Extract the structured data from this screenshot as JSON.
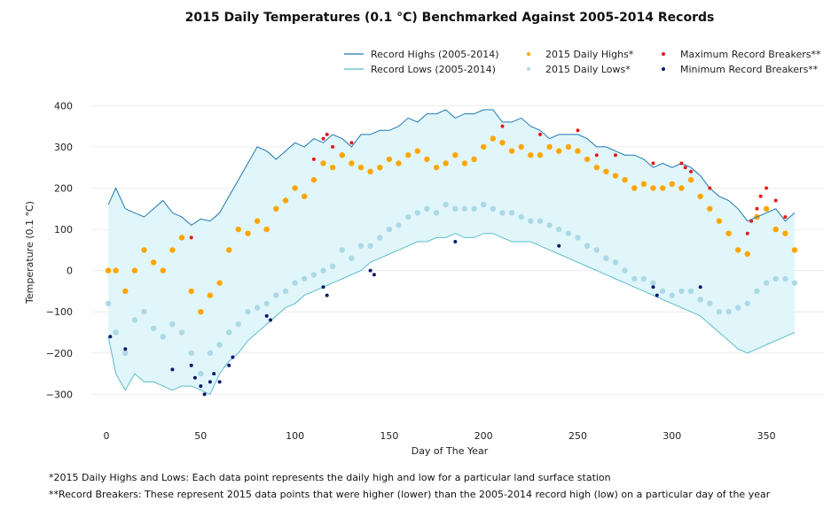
{
  "chart_data": {
    "type": "scatter",
    "title": "2015 Daily Temperatures (0.1 °C) Benchmarked Against 2005-2014 Records",
    "xlabel": "Day of The Year",
    "ylabel": "Temperature (0.1 °C)",
    "xlim": [
      -8,
      381
    ],
    "ylim": [
      -370,
      420
    ],
    "x_ticks": [
      0,
      50,
      100,
      150,
      200,
      250,
      300,
      350
    ],
    "y_ticks": [
      400,
      300,
      200,
      100,
      0,
      -100,
      -200,
      -300
    ],
    "x_tick_labels": [
      "0",
      "50",
      "100",
      "150",
      "200",
      "250",
      "300",
      "350"
    ],
    "y_tick_labels": [
      "400",
      "300",
      "200",
      "100",
      "0",
      "−100",
      "−200",
      "−300"
    ],
    "grid": "horizontal",
    "legend_position": "top-right",
    "colors": {
      "record_high": "#1f77b4",
      "record_low": "#5bbcc9",
      "fill": "#e0f6fa",
      "daily_high": "#ffa500",
      "daily_low": "#add8e6",
      "max_breaker": "#e41a1c",
      "min_breaker": "#0b1a6e"
    },
    "legend": [
      {
        "label": "Record Highs (2005-2014)",
        "kind": "line",
        "color": "#1f77b4"
      },
      {
        "label": "Record Lows (2005-2014)",
        "kind": "line",
        "color": "#5bbcc9"
      },
      {
        "label": "2015 Daily Highs*",
        "kind": "dot",
        "color": "#ffa500"
      },
      {
        "label": "2015 Daily Lows*",
        "kind": "dot",
        "color": "#add8e6"
      },
      {
        "label": "Maximum Record Breakers**",
        "kind": "dot",
        "color": "#e41a1c"
      },
      {
        "label": "Minimum Record Breakers**",
        "kind": "dot",
        "color": "#0b1a6e"
      }
    ],
    "series": [
      {
        "name": "Record Highs (2005-2014)",
        "type": "line",
        "x": [
          1,
          5,
          10,
          15,
          20,
          25,
          30,
          35,
          40,
          45,
          50,
          55,
          60,
          65,
          70,
          75,
          80,
          85,
          90,
          95,
          100,
          105,
          110,
          115,
          120,
          125,
          130,
          135,
          140,
          145,
          150,
          155,
          160,
          165,
          170,
          175,
          180,
          185,
          190,
          195,
          200,
          205,
          210,
          215,
          220,
          225,
          230,
          235,
          240,
          245,
          250,
          255,
          260,
          265,
          270,
          275,
          280,
          285,
          290,
          295,
          300,
          305,
          310,
          315,
          320,
          325,
          330,
          335,
          340,
          345,
          350,
          355,
          360,
          365
        ],
        "y": [
          160,
          200,
          150,
          140,
          130,
          150,
          170,
          140,
          130,
          110,
          125,
          120,
          140,
          180,
          220,
          260,
          300,
          290,
          270,
          290,
          310,
          300,
          320,
          310,
          330,
          320,
          300,
          330,
          330,
          340,
          340,
          350,
          370,
          360,
          380,
          380,
          390,
          370,
          380,
          380,
          390,
          390,
          360,
          360,
          370,
          350,
          340,
          320,
          330,
          330,
          330,
          320,
          300,
          300,
          290,
          280,
          280,
          270,
          250,
          260,
          250,
          260,
          250,
          230,
          200,
          180,
          170,
          150,
          120,
          130,
          140,
          150,
          120,
          140
        ]
      },
      {
        "name": "Record Lows (2005-2014)",
        "type": "line",
        "x": [
          1,
          5,
          10,
          15,
          20,
          25,
          30,
          35,
          40,
          45,
          50,
          55,
          60,
          65,
          70,
          75,
          80,
          85,
          90,
          95,
          100,
          105,
          110,
          115,
          120,
          125,
          130,
          135,
          140,
          145,
          150,
          155,
          160,
          165,
          170,
          175,
          180,
          185,
          190,
          195,
          200,
          205,
          210,
          215,
          220,
          225,
          230,
          235,
          240,
          245,
          250,
          255,
          260,
          265,
          270,
          275,
          280,
          285,
          290,
          295,
          300,
          305,
          310,
          315,
          320,
          325,
          330,
          335,
          340,
          345,
          350,
          355,
          360,
          365
        ],
        "y": [
          -160,
          -250,
          -290,
          -250,
          -270,
          -270,
          -280,
          -290,
          -280,
          -280,
          -290,
          -300,
          -250,
          -220,
          -200,
          -170,
          -150,
          -130,
          -110,
          -90,
          -80,
          -60,
          -50,
          -40,
          -30,
          -20,
          -10,
          0,
          20,
          30,
          40,
          50,
          60,
          70,
          70,
          80,
          80,
          90,
          80,
          80,
          90,
          90,
          80,
          70,
          70,
          70,
          60,
          50,
          40,
          30,
          20,
          10,
          0,
          -10,
          -20,
          -30,
          -40,
          -50,
          -60,
          -70,
          -80,
          -90,
          -100,
          -110,
          -130,
          -150,
          -170,
          -190,
          -200,
          -190,
          -180,
          -170,
          -160,
          -150
        ]
      },
      {
        "name": "2015 Daily Highs*",
        "type": "scatter",
        "x": [
          1,
          5,
          10,
          15,
          20,
          25,
          30,
          35,
          40,
          45,
          50,
          55,
          60,
          65,
          70,
          75,
          80,
          85,
          90,
          95,
          100,
          105,
          110,
          115,
          120,
          125,
          130,
          135,
          140,
          145,
          150,
          155,
          160,
          165,
          170,
          175,
          180,
          185,
          190,
          195,
          200,
          205,
          210,
          215,
          220,
          225,
          230,
          235,
          240,
          245,
          250,
          255,
          260,
          265,
          270,
          275,
          280,
          285,
          290,
          295,
          300,
          305,
          310,
          315,
          320,
          325,
          330,
          335,
          340,
          345,
          350,
          355,
          360,
          365
        ],
        "y": [
          0,
          0,
          -50,
          0,
          50,
          20,
          0,
          50,
          80,
          -50,
          -100,
          -60,
          -30,
          50,
          100,
          90,
          120,
          100,
          150,
          170,
          200,
          180,
          220,
          260,
          250,
          280,
          260,
          250,
          240,
          250,
          270,
          260,
          280,
          290,
          270,
          250,
          260,
          280,
          260,
          270,
          300,
          320,
          310,
          290,
          300,
          280,
          280,
          300,
          290,
          300,
          290,
          270,
          250,
          240,
          230,
          220,
          200,
          210,
          200,
          200,
          210,
          200,
          220,
          180,
          150,
          120,
          90,
          50,
          40,
          130,
          150,
          100,
          90,
          50
        ]
      },
      {
        "name": "2015 Daily Lows*",
        "type": "scatter",
        "x": [
          1,
          5,
          10,
          15,
          20,
          25,
          30,
          35,
          40,
          45,
          50,
          55,
          60,
          65,
          70,
          75,
          80,
          85,
          90,
          95,
          100,
          105,
          110,
          115,
          120,
          125,
          130,
          135,
          140,
          145,
          150,
          155,
          160,
          165,
          170,
          175,
          180,
          185,
          190,
          195,
          200,
          205,
          210,
          215,
          220,
          225,
          230,
          235,
          240,
          245,
          250,
          255,
          260,
          265,
          270,
          275,
          280,
          285,
          290,
          295,
          300,
          305,
          310,
          315,
          320,
          325,
          330,
          335,
          340,
          345,
          350,
          355,
          360,
          365
        ],
        "y": [
          -80,
          -150,
          -200,
          -120,
          -100,
          -140,
          -160,
          -130,
          -150,
          -200,
          -250,
          -200,
          -180,
          -150,
          -130,
          -100,
          -90,
          -80,
          -60,
          -50,
          -30,
          -20,
          -10,
          0,
          10,
          50,
          30,
          60,
          60,
          80,
          100,
          110,
          130,
          140,
          150,
          140,
          160,
          150,
          150,
          150,
          160,
          150,
          140,
          140,
          130,
          120,
          120,
          110,
          100,
          90,
          80,
          60,
          50,
          30,
          20,
          0,
          -20,
          -20,
          -30,
          -50,
          -60,
          -50,
          -50,
          -70,
          -80,
          -100,
          -100,
          -90,
          -80,
          -50,
          -30,
          -20,
          -20,
          -30
        ]
      },
      {
        "name": "Maximum Record Breakers**",
        "type": "scatter",
        "x": [
          45,
          110,
          115,
          117,
          120,
          130,
          210,
          230,
          250,
          260,
          270,
          290,
          305,
          307,
          310,
          320,
          340,
          342,
          345,
          347,
          350,
          355,
          360
        ],
        "y": [
          80,
          270,
          320,
          330,
          300,
          310,
          350,
          330,
          340,
          280,
          280,
          260,
          260,
          250,
          240,
          200,
          90,
          120,
          150,
          180,
          200,
          170,
          130
        ]
      },
      {
        "name": "Minimum Record Breakers**",
        "type": "scatter",
        "x": [
          2,
          10,
          35,
          45,
          47,
          50,
          52,
          55,
          57,
          60,
          65,
          67,
          85,
          87,
          115,
          117,
          140,
          142,
          185,
          240,
          290,
          292,
          315
        ],
        "y": [
          -160,
          -190,
          -240,
          -230,
          -260,
          -280,
          -300,
          -270,
          -250,
          -270,
          -230,
          -210,
          -110,
          -120,
          -40,
          -60,
          0,
          -10,
          70,
          60,
          -40,
          -60,
          -40
        ]
      }
    ]
  },
  "footnotes": [
    "*2015 Daily Highs and Lows: Each data point represents the daily high and low for a particular land surface station",
    "**Record Breakers: These represent 2015 data points that were higher (lower) than the 2005-2014 record high (low) on a particular day of the year"
  ]
}
